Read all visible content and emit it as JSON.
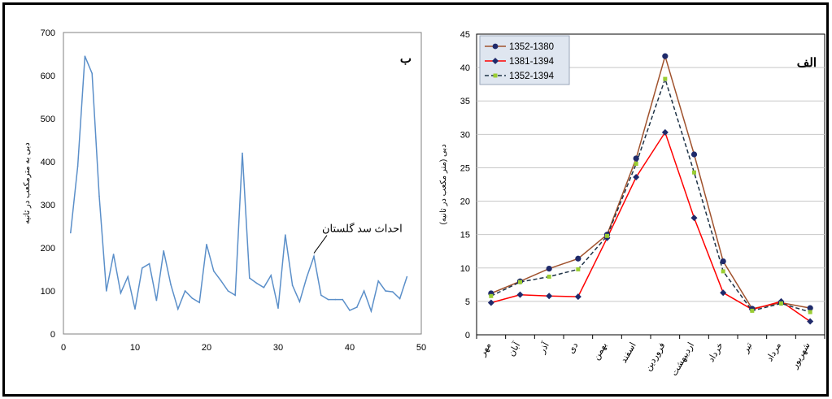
{
  "chart_data": [
    {
      "id": "right",
      "type": "line",
      "panel_label": "الف",
      "ylabel": "دبی (متر مکعب در ثانیه)",
      "categories": [
        "مهر",
        "آبان",
        "آذر",
        "دی",
        "بهمن",
        "اسفند",
        "فروردین",
        "اردیبهشت",
        "خرداد",
        "تیر",
        "مرداد",
        "شهریور"
      ],
      "ylim": [
        0,
        45
      ],
      "yticks": [
        0,
        5,
        10,
        15,
        20,
        25,
        30,
        35,
        40,
        45
      ],
      "legend_position": "top-left",
      "series": [
        {
          "name": "1352-1380",
          "color": "#a0522d",
          "marker": "circle",
          "marker_color": "#1f2a6b",
          "dash": "none",
          "values": [
            6.2,
            8.0,
            9.9,
            11.4,
            15.0,
            26.4,
            41.7,
            27.0,
            11.0,
            3.9,
            4.8,
            4.0
          ]
        },
        {
          "name": "1381-1394",
          "color": "#ff0000",
          "marker": "diamond",
          "marker_color": "#1f2a6b",
          "dash": "none",
          "values": [
            4.8,
            6.0,
            5.8,
            5.7,
            14.5,
            23.6,
            30.3,
            17.5,
            6.3,
            3.8,
            5.0,
            2.0
          ]
        },
        {
          "name": "1352-1394",
          "color": "#1f3347",
          "marker": "square",
          "marker_color": "#9acd32",
          "dash": "5,3",
          "values": [
            5.8,
            7.9,
            8.7,
            9.8,
            14.8,
            25.6,
            38.3,
            24.3,
            9.5,
            3.6,
            4.7,
            3.4
          ]
        }
      ]
    },
    {
      "id": "left",
      "type": "line",
      "panel_label": "ب",
      "ylabel": "دبی به مترمکعب در ثانیه",
      "xlim": [
        0,
        50
      ],
      "ylim": [
        0,
        700
      ],
      "xticks": [
        0,
        10,
        20,
        30,
        40,
        50
      ],
      "yticks": [
        0,
        100,
        200,
        300,
        400,
        500,
        600,
        700
      ],
      "annotation": {
        "text": "احداث سد گلستان",
        "x": 35,
        "y": 180
      },
      "series": [
        {
          "name": "",
          "color": "#5b8fc9",
          "x": [
            1,
            2,
            3,
            4,
            5,
            6,
            7,
            8,
            9,
            10,
            11,
            12,
            13,
            14,
            15,
            16,
            17,
            18,
            19,
            20,
            21,
            22,
            23,
            24,
            25,
            26,
            27,
            28,
            29,
            30,
            31,
            32,
            33,
            34,
            35,
            36,
            37,
            38,
            39,
            40,
            41,
            42,
            43,
            44,
            45,
            46,
            47,
            48
          ],
          "values": [
            235,
            390,
            645,
            605,
            320,
            100,
            185,
            95,
            133,
            58,
            153,
            163,
            78,
            193,
            115,
            58,
            100,
            83,
            73,
            208,
            146,
            124,
            100,
            90,
            420,
            130,
            118,
            108,
            136,
            60,
            230,
            113,
            75,
            132,
            180,
            90,
            80,
            80,
            80,
            55,
            62,
            100,
            53,
            123,
            100,
            98,
            82,
            133
          ]
        }
      ]
    }
  ]
}
